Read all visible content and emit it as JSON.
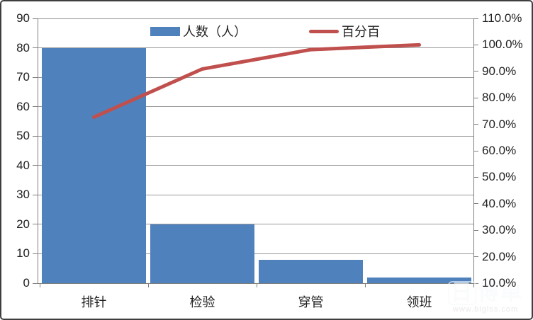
{
  "chart_data": {
    "type": "pareto (bar + line combo)",
    "title": "",
    "categories": [
      "排针",
      "检验",
      "穿管",
      "领班"
    ],
    "series": [
      {
        "name": "人数（人）",
        "type": "bar",
        "axis": "left",
        "color": "#4F81BD",
        "values": [
          80,
          20,
          8,
          2
        ]
      },
      {
        "name": "百分百",
        "type": "line",
        "axis": "right",
        "color": "#C0504D",
        "values": [
          72.7,
          90.9,
          98.2,
          100.0
        ],
        "unit": "%"
      }
    ],
    "left_axis": {
      "min": 0,
      "max": 90,
      "step": 10,
      "tick_labels": [
        "90",
        "80",
        "70",
        "60",
        "50",
        "40",
        "30",
        "20",
        "10",
        "0"
      ]
    },
    "right_axis": {
      "min": 10,
      "max": 110,
      "step": 10,
      "tick_labels": [
        "110.0%",
        "100.0%",
        "90.0%",
        "80.0%",
        "70.0%",
        "60.0%",
        "50.0%",
        "40.0%",
        "30.0%",
        "20.0%",
        "10.0%"
      ]
    },
    "legend": {
      "position": "top",
      "entries": [
        {
          "label": "人数（人）",
          "swatch": "bar",
          "color": "#4F81BD"
        },
        {
          "label": "百分百",
          "swatch": "line",
          "color": "#C0504D"
        }
      ]
    },
    "grid": true,
    "colors": {
      "bar": "#4F81BD",
      "line": "#C0504D",
      "gridline": "#999999",
      "axis": "#7f7f7f",
      "text": "#1f1f1f"
    }
  },
  "watermark": {
    "logo_box_char": "日",
    "logo_rest": "博单",
    "url_text": "www.biglss.com"
  }
}
